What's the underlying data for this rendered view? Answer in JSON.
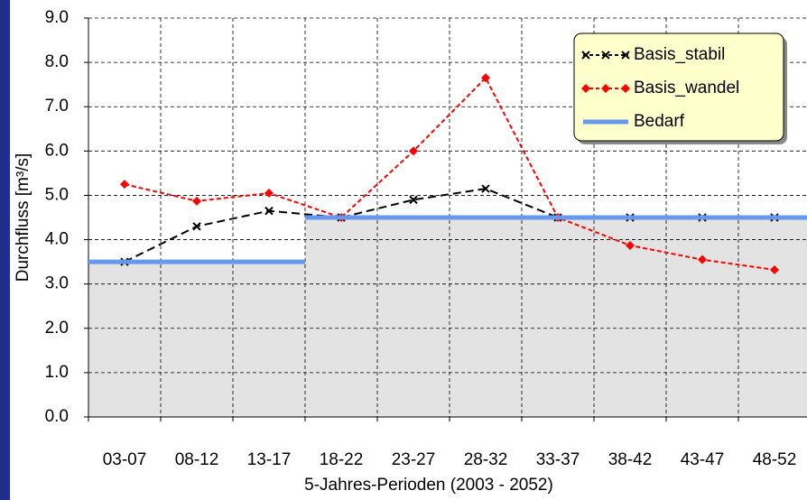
{
  "chart_data": {
    "type": "line",
    "y_label": "Durchfluss [m³/s]",
    "x_label": "5-Jahres-Perioden (2003 - 2052)",
    "categories": [
      "03-07",
      "08-12",
      "13-17",
      "18-22",
      "23-27",
      "28-32",
      "33-37",
      "38-42",
      "43-47",
      "48-52"
    ],
    "series": [
      {
        "name": "Basis_stabil",
        "color": "#000000",
        "marker": "x",
        "values": [
          3.5,
          4.3,
          4.65,
          4.5,
          4.9,
          5.15,
          4.5,
          4.5,
          4.5,
          4.5
        ]
      },
      {
        "name": "Basis_wandel",
        "color": "#ff0000",
        "marker": "diamond",
        "values": [
          5.25,
          4.87,
          5.05,
          4.5,
          6.0,
          7.65,
          4.5,
          3.87,
          3.55,
          3.32
        ]
      },
      {
        "name": "Bedarf",
        "color": "#6699ee",
        "step": true,
        "fill": "#e3e3e3",
        "values": [
          3.5,
          3.5,
          3.5,
          4.5,
          4.5,
          4.5,
          4.5,
          4.5,
          4.5,
          4.5
        ]
      }
    ],
    "ylim": [
      0,
      9
    ],
    "yticks": [
      {
        "value": 0,
        "label": "0.0"
      },
      {
        "value": 1,
        "label": "1.0"
      },
      {
        "value": 2,
        "label": "2.0"
      },
      {
        "value": 3,
        "label": "3.0"
      },
      {
        "value": 4,
        "label": "4.0"
      },
      {
        "value": 5,
        "label": "5.0"
      },
      {
        "value": 6,
        "label": "6.0"
      },
      {
        "value": 7,
        "label": "7.0"
      },
      {
        "value": 8,
        "label": "8.0"
      },
      {
        "value": 9,
        "label": "9.0"
      }
    ],
    "grid": true,
    "legend": "top-right"
  }
}
